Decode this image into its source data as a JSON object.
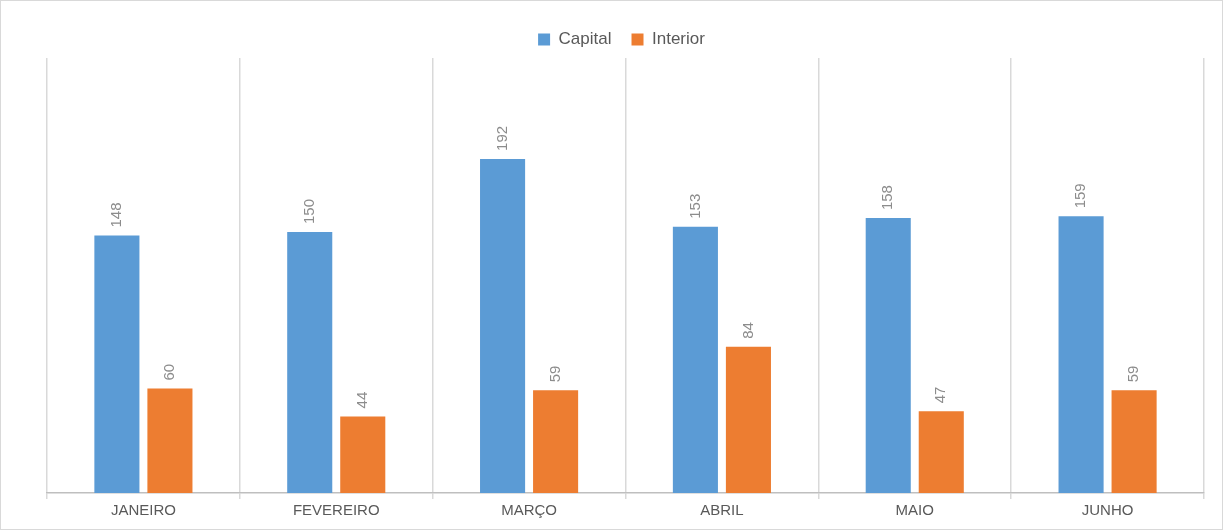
{
  "chart_data": {
    "type": "bar",
    "categories": [
      "JANEIRO",
      "FEVEREIRO",
      "MARÇO",
      "ABRIL",
      "MAIO",
      "JUNHO"
    ],
    "series": [
      {
        "name": "Capital",
        "color": "#5b9bd5",
        "values": [
          148,
          150,
          192,
          153,
          158,
          159
        ]
      },
      {
        "name": "Interior",
        "color": "#ed7d31",
        "values": [
          60,
          44,
          59,
          84,
          47,
          59
        ]
      }
    ],
    "data_labels": true,
    "grid": "x",
    "legend": "top"
  }
}
